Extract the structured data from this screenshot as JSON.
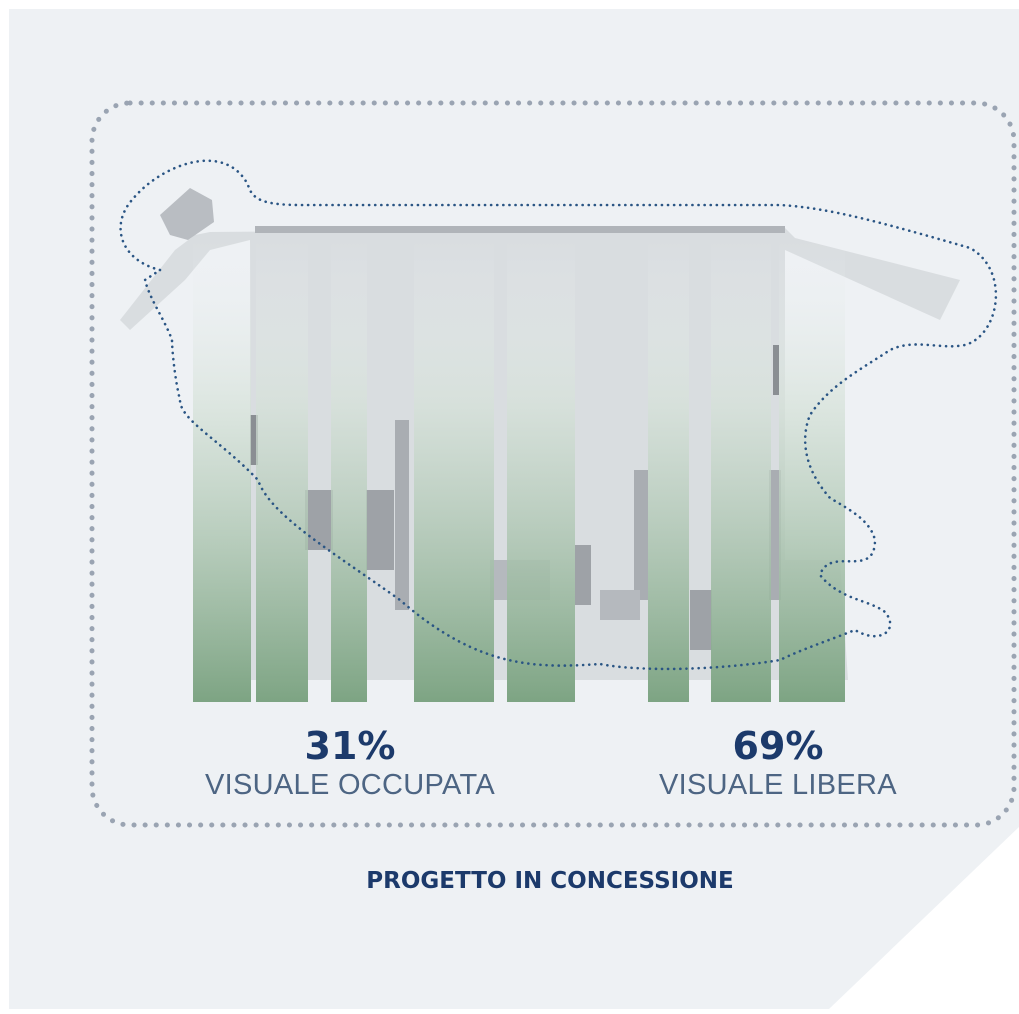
{
  "stats": {
    "occupied": {
      "percent": "31%",
      "label": "VISUALE OCCUPATA"
    },
    "free": {
      "percent": "69%",
      "label": "VISUALE LIBERA"
    }
  },
  "caption": "PROGETTO IN CONCESSIONE",
  "colors": {
    "panel_background": "#eef1f4",
    "dotted_frame": "#9aa4b2",
    "outline_dotted": "#2a5584",
    "bar_green": "#7da483",
    "text_dark_blue": "#1c3a6b",
    "text_label": "#4d6583",
    "map_gray": "#c9ccd0"
  },
  "bars": [
    {
      "id": "bar-1"
    },
    {
      "id": "bar-2"
    },
    {
      "id": "bar-3"
    },
    {
      "id": "bar-4"
    },
    {
      "id": "bar-5"
    },
    {
      "id": "bar-6"
    },
    {
      "id": "bar-7"
    },
    {
      "id": "bar-8"
    }
  ]
}
